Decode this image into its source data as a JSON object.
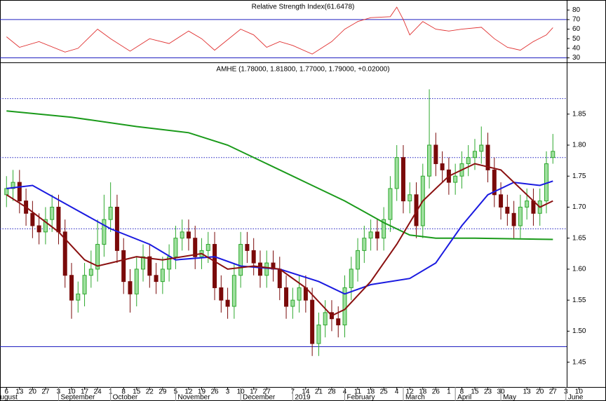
{
  "chart_data": [
    {
      "type": "line",
      "title": "Relative Strength Index(61.6478)",
      "xlim": [
        -1,
        88.5
      ],
      "ylim": [
        26,
        89
      ],
      "yticks": [
        30,
        40,
        50,
        60,
        70,
        80
      ],
      "hlines": [
        {
          "value": 70,
          "style": "solid",
          "color": "#2020c0"
        },
        {
          "value": 30,
          "style": "solid",
          "color": "#2020c0"
        }
      ],
      "series": [
        {
          "color": "#e03030",
          "x": [
            0,
            2,
            5,
            9,
            11,
            14,
            16,
            19,
            22,
            25,
            28,
            30,
            32,
            36,
            38,
            40,
            42,
            44,
            47,
            50,
            52,
            54,
            56,
            59,
            60,
            61,
            62,
            64,
            66,
            68,
            70,
            73,
            75,
            77,
            79,
            81,
            83,
            84
          ],
          "values": [
            52,
            41,
            47,
            36,
            40,
            60,
            50,
            37,
            50,
            45,
            58,
            50,
            38,
            60,
            54,
            41,
            47,
            43,
            34,
            47,
            60,
            68,
            72,
            73,
            83,
            70,
            54,
            68,
            60,
            58,
            60,
            62,
            50,
            41,
            38,
            47,
            54,
            61.6
          ]
        }
      ]
    },
    {
      "type": "candlestick",
      "title": "AMHE (1.78000, 1.81800, 1.77000, 1.79000, +0.02000)",
      "xlim": [
        -1,
        88.5
      ],
      "ylim": [
        1.41,
        1.93
      ],
      "yticks": [
        1.45,
        {
          "value": 1.5,
          "label": "1.50"
        },
        1.55,
        {
          "value": 1.6,
          "label": "1.60"
        },
        1.65,
        {
          "value": 1.7,
          "label": "1.70"
        },
        1.75,
        {
          "value": 1.8,
          "label": "1.80"
        },
        1.85
      ],
      "xticks": [
        {
          "value": 0,
          "label": "6"
        },
        {
          "value": 2,
          "label": "13"
        },
        {
          "value": 4,
          "label": "20"
        },
        {
          "value": 6,
          "label": "27"
        },
        {
          "value": 8,
          "label": "3"
        },
        {
          "value": 10,
          "label": "10"
        },
        {
          "value": 12,
          "label": "17"
        },
        {
          "value": 14,
          "label": "24"
        },
        {
          "value": 16,
          "label": "1"
        },
        {
          "value": 18,
          "label": "8"
        },
        {
          "value": 20,
          "label": "15"
        },
        {
          "value": 22,
          "label": "22"
        },
        {
          "value": 24,
          "label": "29"
        },
        {
          "value": 26,
          "label": "5"
        },
        {
          "value": 28,
          "label": "12"
        },
        {
          "value": 30,
          "label": "19"
        },
        {
          "value": 32,
          "label": "26"
        },
        {
          "value": 34,
          "label": "3"
        },
        {
          "value": 36,
          "label": "10"
        },
        {
          "value": 38,
          "label": "17"
        },
        {
          "value": 40,
          "label": "27"
        },
        {
          "value": 44,
          "label": "7"
        },
        {
          "value": 46,
          "label": "14"
        },
        {
          "value": 48,
          "label": "21"
        },
        {
          "value": 50,
          "label": "28"
        },
        {
          "value": 52,
          "label": "4"
        },
        {
          "value": 54,
          "label": "11"
        },
        {
          "value": 56,
          "label": "18"
        },
        {
          "value": 58,
          "label": "25"
        },
        {
          "value": 60,
          "label": "4"
        },
        {
          "value": 62,
          "label": "12"
        },
        {
          "value": 64,
          "label": "18"
        },
        {
          "value": 66,
          "label": "26"
        },
        {
          "value": 68,
          "label": "1"
        },
        {
          "value": 70,
          "label": "8"
        },
        {
          "value": 72,
          "label": "15"
        },
        {
          "value": 74,
          "label": "23"
        },
        {
          "value": 76,
          "label": "30"
        },
        {
          "value": 80,
          "label": "13"
        },
        {
          "value": 82,
          "label": "20"
        },
        {
          "value": 84,
          "label": "27"
        },
        {
          "value": 86,
          "label": "3"
        },
        {
          "value": 88,
          "label": "10"
        }
      ],
      "month_ticks": [
        {
          "value": -2,
          "label": "August"
        },
        {
          "value": 8,
          "label": "September"
        },
        {
          "value": 16,
          "label": "October"
        },
        {
          "value": 26,
          "label": "November"
        },
        {
          "value": 36,
          "label": "December"
        },
        {
          "value": 44,
          "label": "2019"
        },
        {
          "value": 52,
          "label": "February"
        },
        {
          "value": 61,
          "label": "March"
        },
        {
          "value": 69,
          "label": "April"
        },
        {
          "value": 76,
          "label": "May"
        },
        {
          "value": 86,
          "label": "June"
        }
      ],
      "up_color": "#2ea82e",
      "down_color": "#7a0a0a",
      "open": [
        1.72,
        1.73,
        1.74,
        1.71,
        1.69,
        1.67,
        1.66,
        1.68,
        1.7,
        1.66,
        1.59,
        1.55,
        1.56,
        1.59,
        1.6,
        1.64,
        1.68,
        1.7,
        1.63,
        1.58,
        1.56,
        1.6,
        1.62,
        1.59,
        1.58,
        1.6,
        1.62,
        1.65,
        1.66,
        1.65,
        1.62,
        1.63,
        1.64,
        1.57,
        1.55,
        1.54,
        1.59,
        1.64,
        1.63,
        1.61,
        1.59,
        1.61,
        1.6,
        1.57,
        1.54,
        1.55,
        1.57,
        1.55,
        1.48,
        1.51,
        1.53,
        1.52,
        1.51,
        1.57,
        1.6,
        1.63,
        1.65,
        1.66,
        1.65,
        1.68,
        1.73,
        1.78,
        1.71,
        1.72,
        1.67,
        1.75,
        1.8,
        1.77,
        1.76,
        1.74,
        1.75,
        1.77,
        1.78,
        1.79,
        1.8,
        1.76,
        1.72,
        1.7,
        1.69,
        1.67,
        1.7,
        1.71,
        1.69,
        1.71,
        1.78
      ],
      "high": [
        1.75,
        1.76,
        1.76,
        1.73,
        1.71,
        1.69,
        1.7,
        1.72,
        1.72,
        1.68,
        1.61,
        1.58,
        1.61,
        1.63,
        1.68,
        1.72,
        1.74,
        1.72,
        1.65,
        1.6,
        1.62,
        1.64,
        1.64,
        1.61,
        1.62,
        1.64,
        1.67,
        1.68,
        1.68,
        1.67,
        1.65,
        1.66,
        1.66,
        1.59,
        1.57,
        1.61,
        1.66,
        1.66,
        1.65,
        1.63,
        1.63,
        1.63,
        1.62,
        1.59,
        1.57,
        1.59,
        1.59,
        1.57,
        1.53,
        1.55,
        1.55,
        1.54,
        1.59,
        1.62,
        1.65,
        1.67,
        1.68,
        1.68,
        1.7,
        1.75,
        1.8,
        1.8,
        1.74,
        1.74,
        1.77,
        1.89,
        1.82,
        1.79,
        1.78,
        1.77,
        1.79,
        1.8,
        1.81,
        1.83,
        1.82,
        1.78,
        1.74,
        1.72,
        1.71,
        1.72,
        1.73,
        1.73,
        1.73,
        1.79,
        1.818
      ],
      "low": [
        1.7,
        1.71,
        1.69,
        1.67,
        1.65,
        1.64,
        1.64,
        1.66,
        1.64,
        1.57,
        1.52,
        1.53,
        1.54,
        1.57,
        1.58,
        1.62,
        1.66,
        1.61,
        1.56,
        1.53,
        1.54,
        1.58,
        1.57,
        1.56,
        1.56,
        1.58,
        1.6,
        1.63,
        1.63,
        1.6,
        1.6,
        1.61,
        1.55,
        1.53,
        1.52,
        1.52,
        1.57,
        1.61,
        1.59,
        1.57,
        1.57,
        1.58,
        1.55,
        1.52,
        1.52,
        1.53,
        1.53,
        1.46,
        1.46,
        1.49,
        1.5,
        1.49,
        1.49,
        1.55,
        1.58,
        1.61,
        1.63,
        1.63,
        1.63,
        1.66,
        1.71,
        1.69,
        1.69,
        1.65,
        1.65,
        1.73,
        1.75,
        1.74,
        1.72,
        1.72,
        1.73,
        1.75,
        1.76,
        1.77,
        1.74,
        1.7,
        1.68,
        1.67,
        1.65,
        1.65,
        1.68,
        1.67,
        1.67,
        1.69,
        1.77
      ],
      "close": [
        1.73,
        1.74,
        1.71,
        1.69,
        1.67,
        1.66,
        1.68,
        1.7,
        1.66,
        1.59,
        1.55,
        1.56,
        1.59,
        1.6,
        1.64,
        1.68,
        1.7,
        1.63,
        1.58,
        1.56,
        1.6,
        1.62,
        1.59,
        1.58,
        1.6,
        1.62,
        1.65,
        1.66,
        1.65,
        1.62,
        1.63,
        1.64,
        1.57,
        1.55,
        1.54,
        1.59,
        1.64,
        1.63,
        1.61,
        1.59,
        1.61,
        1.6,
        1.57,
        1.54,
        1.55,
        1.57,
        1.55,
        1.48,
        1.51,
        1.53,
        1.52,
        1.51,
        1.57,
        1.6,
        1.63,
        1.65,
        1.66,
        1.65,
        1.68,
        1.73,
        1.78,
        1.71,
        1.72,
        1.67,
        1.75,
        1.8,
        1.77,
        1.76,
        1.74,
        1.75,
        1.77,
        1.78,
        1.79,
        1.8,
        1.76,
        1.72,
        1.7,
        1.69,
        1.67,
        1.7,
        1.71,
        1.69,
        1.71,
        1.77,
        1.79
      ],
      "overlays": [
        {
          "color": "#1a9a1a",
          "x": [
            0,
            10,
            20,
            28,
            34,
            40,
            46,
            52,
            58,
            62,
            66,
            72,
            84
          ],
          "values": [
            1.855,
            1.845,
            1.83,
            1.82,
            1.8,
            1.77,
            1.74,
            1.71,
            1.675,
            1.655,
            1.65,
            1.65,
            1.648
          ]
        },
        {
          "color": "#1a1ae0",
          "x": [
            0,
            4,
            10,
            16,
            22,
            26,
            32,
            36,
            42,
            48,
            52,
            56,
            62,
            66,
            70,
            74,
            78,
            82,
            84
          ],
          "values": [
            1.73,
            1.735,
            1.7,
            1.665,
            1.64,
            1.615,
            1.62,
            1.605,
            1.6,
            1.58,
            1.56,
            1.575,
            1.585,
            1.61,
            1.67,
            1.72,
            1.74,
            1.735,
            1.742
          ]
        },
        {
          "color": "#8a1010",
          "x": [
            0,
            3,
            8,
            12,
            14,
            16,
            20,
            24,
            30,
            34,
            38,
            42,
            46,
            50,
            52,
            56,
            60,
            64,
            68,
            72,
            76,
            80,
            82,
            84
          ],
          "values": [
            1.72,
            1.7,
            1.66,
            1.615,
            1.605,
            1.61,
            1.62,
            1.615,
            1.625,
            1.6,
            1.605,
            1.6,
            1.57,
            1.525,
            1.535,
            1.58,
            1.64,
            1.71,
            1.75,
            1.77,
            1.76,
            1.72,
            1.7,
            1.71
          ]
        }
      ],
      "hlines": [
        {
          "value": 1.875,
          "style": "dotted",
          "color": "#2020c0"
        },
        {
          "value": 1.78,
          "style": "dotted",
          "color": "#2020c0"
        },
        {
          "value": 1.665,
          "style": "dotted",
          "color": "#2020c0"
        },
        {
          "value": 1.475,
          "style": "solid",
          "color": "#2020c0"
        }
      ]
    }
  ]
}
